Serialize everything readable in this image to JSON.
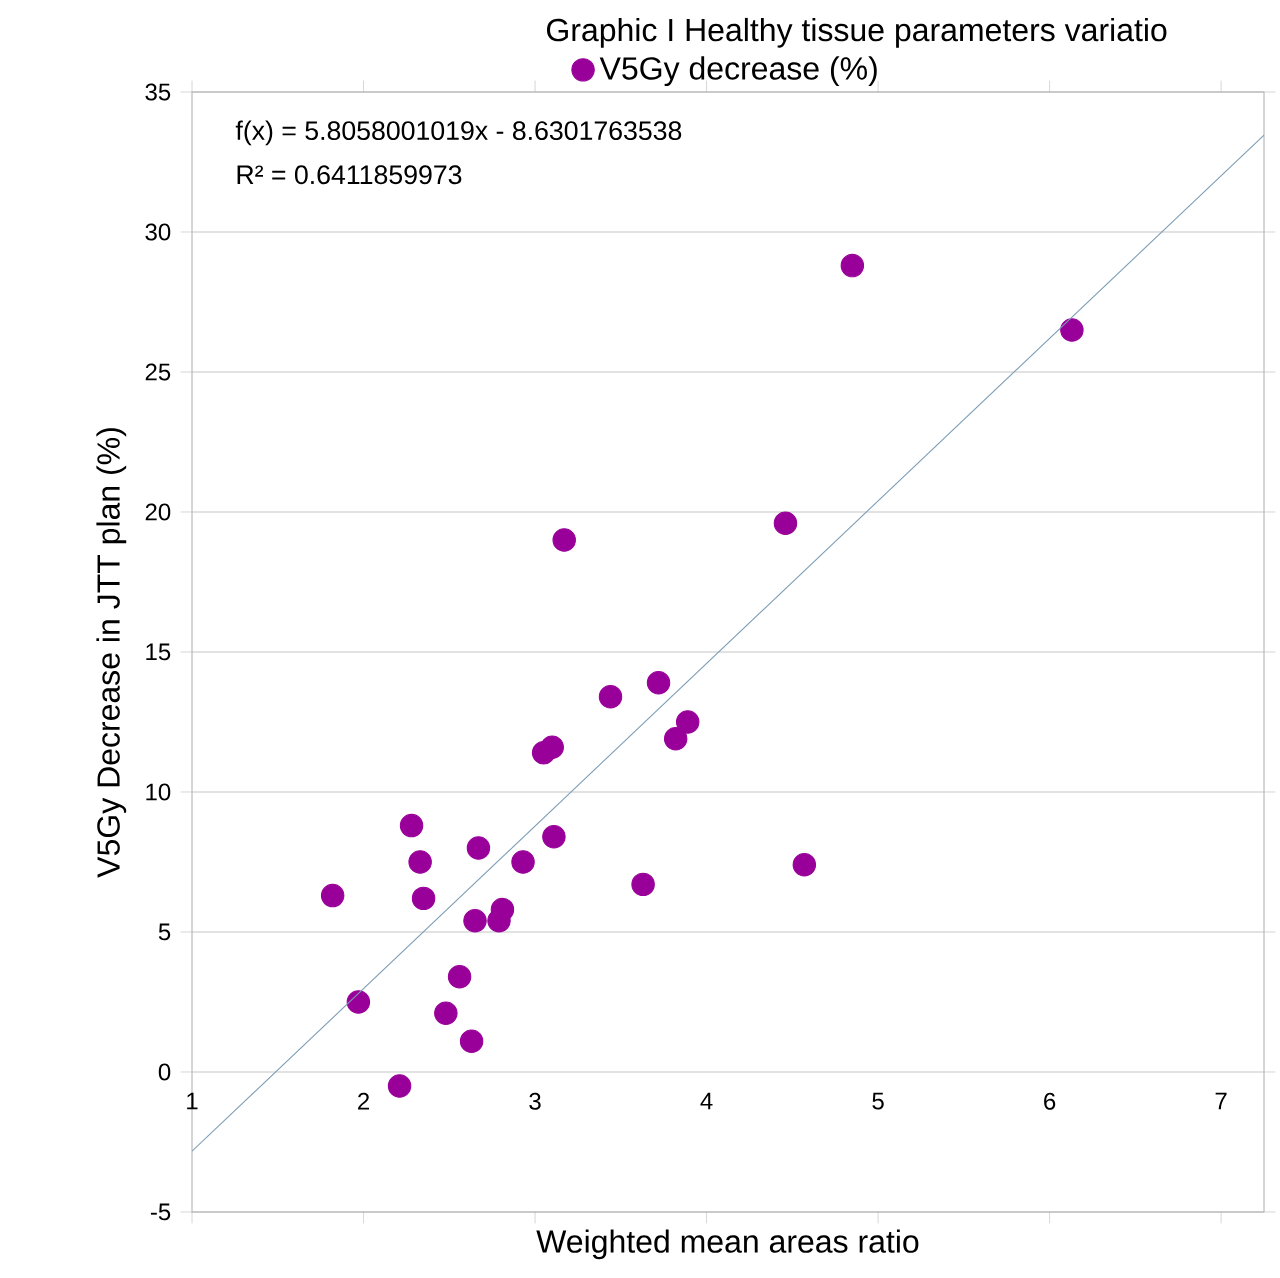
{
  "chart_data": {
    "type": "scatter",
    "title": "Graphic I Healthy tissue parameters variatio",
    "xlabel": "Weighted mean areas ratio",
    "ylabel": "V5Gy Decrease in JTT plan (%)",
    "xlim": [
      1,
      7.25
    ],
    "xticks": [
      1,
      2,
      3,
      4,
      5,
      6,
      7
    ],
    "ylim": [
      -5,
      35
    ],
    "yticks": [
      -5,
      0,
      5,
      10,
      15,
      20,
      25,
      30,
      35
    ],
    "grid": "y",
    "legend": "top",
    "annotations": [
      "f(x) = 5.8058001019x - 8.6301763538",
      "R² = 0.6411859973"
    ],
    "series": [
      {
        "name": "V5Gy decrease (%)",
        "marker": "circle",
        "color": "#990099",
        "x": [
          1.82,
          1.97,
          2.48,
          2.21,
          2.28,
          2.33,
          2.35,
          2.56,
          2.63,
          2.65,
          2.67,
          2.79,
          2.81,
          2.93,
          3.05,
          3.1,
          3.11,
          3.44,
          3.63,
          3.72,
          3.82,
          3.89,
          4.57,
          3.17,
          4.46,
          4.85,
          6.13
        ],
        "values": [
          6.3,
          2.5,
          2.1,
          -0.5,
          8.8,
          7.5,
          6.2,
          3.4,
          1.1,
          5.4,
          8.0,
          5.4,
          5.8,
          7.5,
          11.4,
          11.6,
          8.4,
          13.4,
          6.7,
          13.9,
          11.9,
          12.5,
          7.4,
          19.0,
          19.6,
          28.8,
          26.5
        ]
      },
      {
        "type": "line",
        "marker": "none",
        "color": "#7a9cb5",
        "line_style": "solid",
        "x": [
          1,
          7.25
        ],
        "values": [
          -2.83,
          33.46
        ]
      }
    ]
  }
}
